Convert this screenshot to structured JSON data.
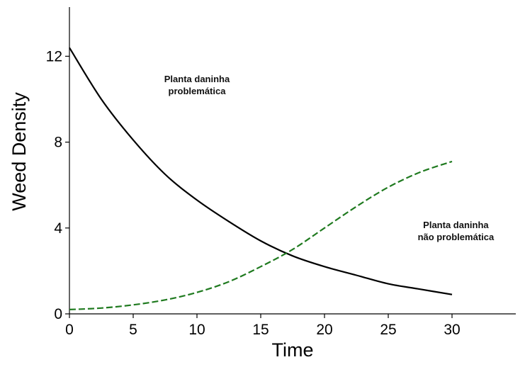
{
  "chart_data": {
    "type": "line",
    "title": "",
    "xlabel": "Time",
    "ylabel": "Weed Density",
    "xlim": [
      0,
      35
    ],
    "ylim": [
      0,
      14
    ],
    "xticks": [
      0,
      5,
      10,
      15,
      20,
      25,
      30
    ],
    "yticks": [
      0,
      4,
      8,
      12
    ],
    "grid": false,
    "legend": "none",
    "series": [
      {
        "color": "#000000",
        "line_style": "solid",
        "x": [
          0,
          2.5,
          5,
          7.5,
          10,
          12.5,
          15,
          17.5,
          20,
          22.5,
          25,
          27.5,
          30
        ],
        "y": [
          12.4,
          10.0,
          8.1,
          6.5,
          5.3,
          4.3,
          3.4,
          2.7,
          2.2,
          1.8,
          1.4,
          1.15,
          0.9
        ]
      },
      {
        "color": "#1f7a1f",
        "line_style": "dashed",
        "x": [
          0,
          2.5,
          5,
          7.5,
          10,
          12.5,
          15,
          17.5,
          20,
          22.5,
          25,
          27.5,
          30
        ],
        "y": [
          0.2,
          0.27,
          0.42,
          0.65,
          1.0,
          1.5,
          2.2,
          3.0,
          4.0,
          5.0,
          5.9,
          6.6,
          7.1
        ]
      }
    ],
    "annotations": [
      {
        "lines": [
          "Planta daninha",
          "problemática"
        ],
        "x": 10,
        "y": 10.8
      },
      {
        "lines": [
          "Planta daninha",
          "não problemática"
        ],
        "x": 30.3,
        "y": 4.0
      }
    ]
  }
}
